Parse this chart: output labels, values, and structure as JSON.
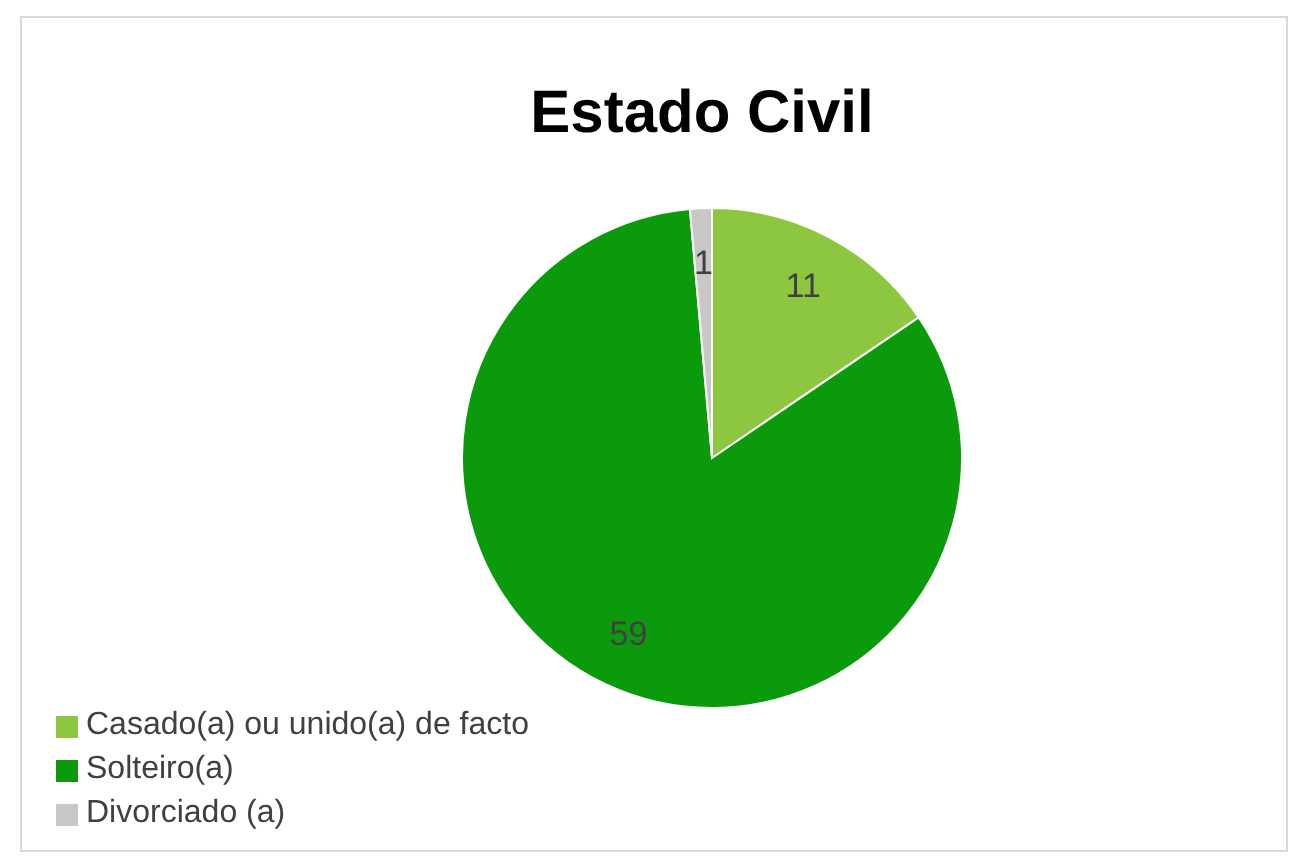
{
  "chart_data": {
    "type": "pie",
    "title": "Estado Civil",
    "categories": [
      "Casado(a) ou unido(a) de facto",
      "Solteiro(a)",
      "Divorciado (a)"
    ],
    "values": [
      11,
      59,
      1
    ],
    "colors": [
      "#8dc63f",
      "#0b9a0b",
      "#c8c8c8"
    ],
    "data_labels": true,
    "legend": "bottom left"
  }
}
